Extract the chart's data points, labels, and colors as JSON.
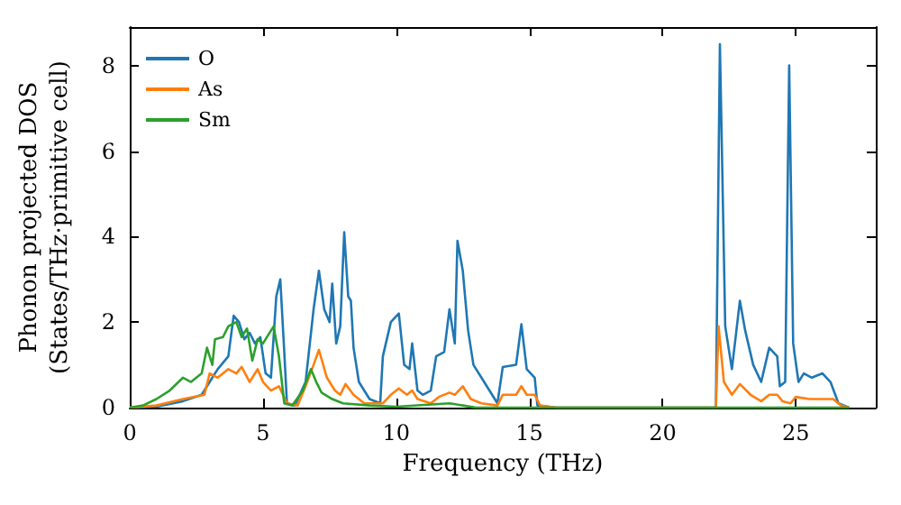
{
  "chart_data": {
    "type": "line",
    "xlabel": "Frequency (THz)",
    "ylabel": "Phonon projected DOS\n(States/THz·primitive cell)",
    "xlim": [
      0,
      28
    ],
    "ylim": [
      0,
      8.9
    ],
    "xticks": [
      0,
      5,
      10,
      15,
      20,
      25
    ],
    "yticks": [
      0,
      2,
      4,
      6,
      8
    ],
    "grid": false,
    "legend": "top left",
    "marker": "none",
    "line_style": "solid",
    "series": [
      {
        "name": "O",
        "color": "#1f77b4",
        "x": [
          0,
          1,
          2,
          2.7,
          3.0,
          3.3,
          3.7,
          3.9,
          4.1,
          4.3,
          4.5,
          4.7,
          4.9,
          5.1,
          5.3,
          5.5,
          5.65,
          5.8,
          5.9,
          6.2,
          6.6,
          6.9,
          7.1,
          7.3,
          7.5,
          7.6,
          7.75,
          7.9,
          8.05,
          8.2,
          8.3,
          8.4,
          8.6,
          9.0,
          9.4,
          9.5,
          9.8,
          10.1,
          10.3,
          10.5,
          10.6,
          10.8,
          11,
          11.3,
          11.5,
          11.8,
          12.0,
          12.2,
          12.3,
          12.5,
          12.7,
          12.9,
          13.3,
          13.8,
          14.0,
          14.5,
          14.7,
          14.9,
          15.2,
          15.3,
          16,
          20,
          22.0,
          22.15,
          22.35,
          22.6,
          22.9,
          23.1,
          23.4,
          23.7,
          24.0,
          24.3,
          24.4,
          24.6,
          24.75,
          24.9,
          25.1,
          25.3,
          25.6,
          26.0,
          26.3,
          26.6,
          27
        ],
        "values": [
          0,
          0.02,
          0.15,
          0.3,
          0.6,
          0.9,
          1.2,
          2.15,
          2.0,
          1.6,
          1.75,
          1.5,
          1.65,
          0.8,
          0.7,
          2.6,
          3.0,
          1.3,
          0.1,
          0.05,
          0.6,
          2.3,
          3.2,
          2.3,
          2.0,
          2.9,
          1.5,
          1.9,
          4.1,
          2.6,
          2.5,
          1.4,
          0.6,
          0.2,
          0.1,
          1.2,
          2.0,
          2.2,
          1.0,
          0.9,
          1.5,
          0.4,
          0.3,
          0.4,
          1.2,
          1.3,
          2.3,
          1.5,
          3.9,
          3.2,
          1.8,
          1.0,
          0.6,
          0.1,
          0.95,
          1.0,
          1.95,
          0.9,
          0.7,
          0.05,
          0,
          0,
          0,
          8.5,
          1.9,
          0.9,
          2.5,
          1.8,
          1.0,
          0.6,
          1.4,
          1.2,
          0.5,
          0.6,
          8.0,
          1.5,
          0.6,
          0.8,
          0.7,
          0.8,
          0.6,
          0.1,
          0
        ]
      },
      {
        "name": "As",
        "color": "#ff7f0e",
        "x": [
          0,
          1,
          2,
          2.8,
          3.0,
          3.3,
          3.7,
          4.0,
          4.2,
          4.5,
          4.8,
          5.0,
          5.3,
          5.6,
          5.9,
          6.3,
          6.6,
          6.9,
          7.1,
          7.4,
          7.7,
          7.9,
          8.1,
          8.4,
          8.8,
          9.5,
          9.8,
          10.1,
          10.4,
          10.6,
          10.8,
          11.3,
          11.6,
          12.0,
          12.2,
          12.5,
          12.8,
          13.2,
          13.8,
          14.0,
          14.5,
          14.7,
          14.9,
          15.2,
          15.4,
          16,
          22.0,
          22.1,
          22.3,
          22.6,
          22.9,
          23.3,
          23.7,
          24.0,
          24.3,
          24.5,
          24.8,
          25.0,
          25.5,
          26.0,
          26.4,
          26.7,
          27
        ],
        "values": [
          0,
          0.05,
          0.2,
          0.3,
          0.8,
          0.7,
          0.9,
          0.8,
          0.95,
          0.6,
          0.9,
          0.6,
          0.4,
          0.5,
          0.1,
          0.05,
          0.5,
          1.0,
          1.35,
          0.7,
          0.4,
          0.3,
          0.55,
          0.3,
          0.1,
          0.1,
          0.3,
          0.45,
          0.3,
          0.4,
          0.2,
          0.1,
          0.25,
          0.35,
          0.3,
          0.5,
          0.2,
          0.1,
          0.05,
          0.3,
          0.3,
          0.5,
          0.3,
          0.3,
          0.05,
          0,
          0,
          1.9,
          0.6,
          0.3,
          0.55,
          0.3,
          0.15,
          0.3,
          0.3,
          0.15,
          0.1,
          0.25,
          0.2,
          0.2,
          0.2,
          0.05,
          0
        ]
      },
      {
        "name": "Sm",
        "color": "#2ca02c",
        "x": [
          0,
          0.5,
          1,
          1.5,
          2,
          2.3,
          2.7,
          2.9,
          3.1,
          3.2,
          3.5,
          3.7,
          4.0,
          4.2,
          4.4,
          4.6,
          4.8,
          5.0,
          5.2,
          5.4,
          5.6,
          5.8,
          6.1,
          6.5,
          6.8,
          7.0,
          7.2,
          7.6,
          8,
          9,
          10,
          12,
          12.5,
          13,
          22,
          27
        ],
        "values": [
          0,
          0.05,
          0.2,
          0.4,
          0.7,
          0.6,
          0.8,
          1.4,
          1.0,
          1.6,
          1.65,
          1.9,
          2.0,
          1.65,
          1.85,
          1.1,
          1.6,
          1.5,
          1.7,
          1.9,
          1.2,
          0.1,
          0.05,
          0.4,
          0.9,
          0.6,
          0.35,
          0.2,
          0.1,
          0.05,
          0.02,
          0.1,
          0.05,
          0,
          0,
          0
        ]
      }
    ]
  }
}
